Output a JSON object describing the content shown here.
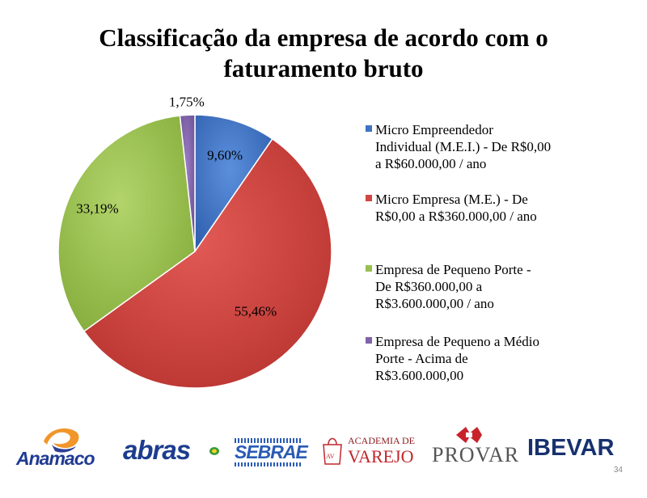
{
  "slide": {
    "title_line1": "Classificação da empresa de acordo com o",
    "title_line2": "faturamento bruto",
    "page_number": "34"
  },
  "chart_data": {
    "type": "pie",
    "title": "Classificação da empresa de acordo com o faturamento bruto",
    "categories": [
      "Micro Empreendedor Individual (M.E.I.) - De R$0,00 a R$60.000,00 / ano",
      "Micro Empresa (M.E.) - De R$0,00 a R$360.000,00 / ano",
      "Empresa de Pequeno Porte - De R$360.000,00 a R$3.600.000,00 / ano",
      "Empresa de Pequeno a Médio Porte - Acima de R$3.600.000,00"
    ],
    "values": [
      9.6,
      55.46,
      33.19,
      1.75
    ],
    "data_labels": [
      "9,60%",
      "55,46%",
      "33,19%",
      "1,75%"
    ],
    "colors": [
      "#3f73c4",
      "#d24541",
      "#99c04f",
      "#8062a8"
    ],
    "legend_position": "right"
  },
  "legend": {
    "items": [
      {
        "text": "Micro Empreendedor\nIndividual (M.E.I.) - De R$0,00\na R$60.000,00 / ano",
        "color": "#3f73c4"
      },
      {
        "text": "Micro Empresa (M.E.) - De\nR$0,00 a R$360.000,00 / ano",
        "color": "#d24541"
      },
      {
        "text": "Empresa de Pequeno Porte -\nDe R$360.000,00 a\nR$3.600.000,00 / ano",
        "color": "#99c04f"
      },
      {
        "text": "Empresa de Pequeno a Médio\nPorte - Acima de\nR$3.600.000,00",
        "color": "#8062a8"
      }
    ]
  },
  "logos": {
    "anamaco": "Anamaco",
    "abras": "abras",
    "sebrae": "SEBRAE",
    "academia_line1": "ACADEMIA DE",
    "academia_line2": "VAREJO",
    "academia_badge": "AV",
    "provar": "PROVAR",
    "ibevar": "IBEVAR"
  }
}
